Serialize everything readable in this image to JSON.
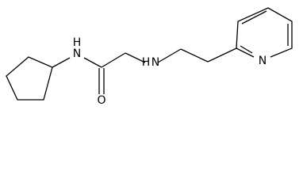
{
  "atoms": [
    {
      "label": "N",
      "hydrogen": "H"
    },
    {
      "label": "O"
    },
    {
      "label": "N",
      "hydrogen": "H"
    },
    {
      "label": "N"
    }
  ]
}
